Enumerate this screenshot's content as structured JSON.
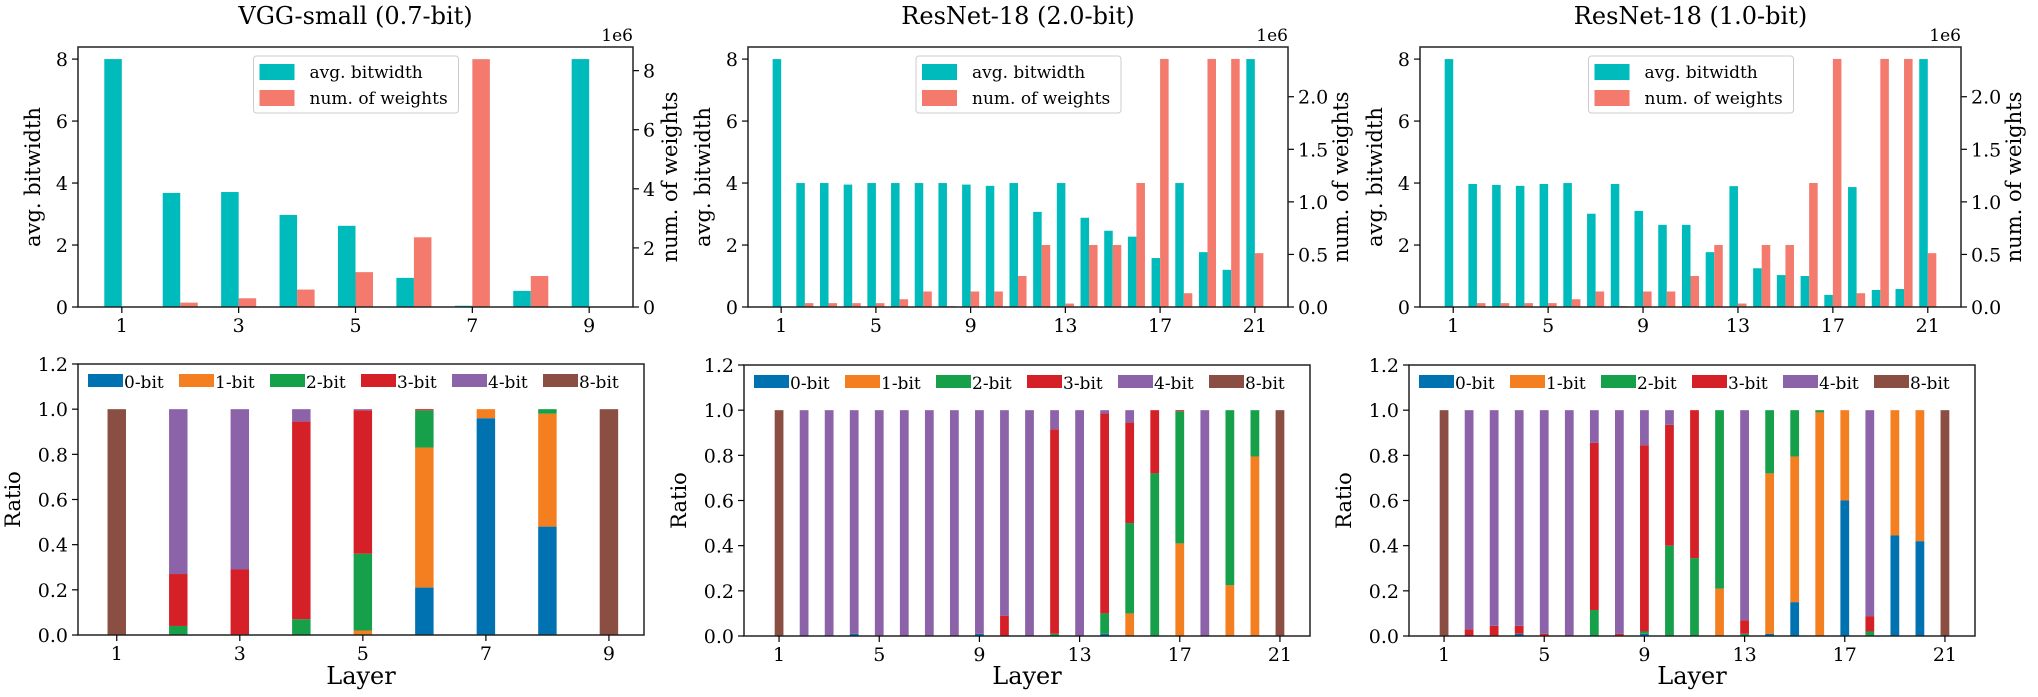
{
  "colors": {
    "avg_bitwidth": "#00BBBB",
    "num_weights": "#F47A6E",
    "0-bit": "#0072B2",
    "1-bit": "#F47F20",
    "2-bit": "#16A04A",
    "3-bit": "#D62027",
    "4-bit": "#8C62A9",
    "8-bit": "#8A4F42"
  },
  "chart_data": [
    {
      "type": "bar",
      "title": "VGG-small (0.7-bit)",
      "xlabel": "",
      "ylabel": "avg. bitwidth",
      "y2label": "num. of weights",
      "y2_offset_text": "1e6",
      "categories": [
        1,
        2,
        3,
        4,
        5,
        6,
        7,
        8,
        9
      ],
      "xticks": [
        "1",
        "3",
        "5",
        "7",
        "9"
      ],
      "xtick_values": [
        1,
        3,
        5,
        7,
        9
      ],
      "xlim": [
        0.25,
        9.75
      ],
      "yticks": [
        "0",
        "2",
        "4",
        "6",
        "8"
      ],
      "ytick_values": [
        0,
        2,
        4,
        6,
        8
      ],
      "ylim": [
        0,
        8.39
      ],
      "y2ticks": [
        "0",
        "2",
        "4",
        "6",
        "8"
      ],
      "y2tick_values": [
        0,
        2000000,
        4000000,
        6000000,
        8000000
      ],
      "y2lim": [
        0,
        8800000
      ],
      "legend": "upper center",
      "series": [
        {
          "name": "avg. bitwidth",
          "axis": "left",
          "values": [
            8,
            3.68,
            3.71,
            2.97,
            2.62,
            0.94,
            0.04,
            0.52,
            8
          ]
        },
        {
          "name": "num. of weights",
          "axis": "right",
          "values": [
            3456,
            147456,
            294912,
            589824,
            1179648,
            2359296,
            8388608,
            1048576,
            10240
          ]
        }
      ]
    },
    {
      "type": "bar",
      "title": "ResNet-18 (2.0-bit)",
      "xlabel": "",
      "ylabel": "avg. bitwidth",
      "y2label": "num. of weights",
      "y2_offset_text": "1e6",
      "categories": [
        1,
        2,
        3,
        4,
        5,
        6,
        7,
        8,
        9,
        10,
        11,
        12,
        13,
        14,
        15,
        16,
        17,
        18,
        19,
        20,
        21
      ],
      "xticks": [
        "1",
        "5",
        "9",
        "13",
        "17",
        "21"
      ],
      "xtick_values": [
        1,
        5,
        9,
        13,
        17,
        21
      ],
      "xlim": [
        -0.4,
        22.4
      ],
      "yticks": [
        "0",
        "2",
        "4",
        "6",
        "8"
      ],
      "ytick_values": [
        0,
        2,
        4,
        6,
        8
      ],
      "ylim": [
        0,
        8.39
      ],
      "y2ticks": [
        "0.0",
        "0.5",
        "1.0",
        "1.5",
        "2.0"
      ],
      "y2tick_values": [
        0,
        500000,
        1000000,
        1500000,
        2000000
      ],
      "y2lim": [
        0,
        2473000
      ],
      "legend": "upper center",
      "series": [
        {
          "name": "avg. bitwidth",
          "axis": "left",
          "values": [
            8,
            4,
            4,
            3.95,
            4,
            4,
            4,
            4,
            3.95,
            3.91,
            4,
            3.07,
            4,
            2.88,
            2.46,
            2.27,
            1.58,
            4,
            1.77,
            1.2,
            8
          ]
        },
        {
          "name": "num. of weights",
          "axis": "right",
          "values": [
            1728,
            36864,
            36864,
            36864,
            36864,
            73728,
            147456,
            8192,
            147456,
            147456,
            294912,
            589824,
            32768,
            589824,
            589824,
            1179648,
            2359296,
            131072,
            2359296,
            2359296,
            512000
          ]
        }
      ]
    },
    {
      "type": "bar",
      "title": "ResNet-18 (1.0-bit)",
      "xlabel": "",
      "ylabel": "avg. bitwidth",
      "y2label": "num. of weights",
      "y2_offset_text": "1e6",
      "categories": [
        1,
        2,
        3,
        4,
        5,
        6,
        7,
        8,
        9,
        10,
        11,
        12,
        13,
        14,
        15,
        16,
        17,
        18,
        19,
        20,
        21
      ],
      "xticks": [
        "1",
        "5",
        "9",
        "13",
        "17",
        "21"
      ],
      "xtick_values": [
        1,
        5,
        9,
        13,
        17,
        21
      ],
      "xlim": [
        -0.4,
        22.4
      ],
      "yticks": [
        "0",
        "2",
        "4",
        "6",
        "8"
      ],
      "ytick_values": [
        0,
        2,
        4,
        6,
        8
      ],
      "ylim": [
        0,
        8.39
      ],
      "y2ticks": [
        "0.0",
        "0.5",
        "1.0",
        "1.5",
        "2.0"
      ],
      "y2tick_values": [
        0,
        500000,
        1000000,
        1500000,
        2000000
      ],
      "y2lim": [
        0,
        2473000
      ],
      "legend": "upper center",
      "series": [
        {
          "name": "avg. bitwidth",
          "axis": "left",
          "values": [
            8,
            3.97,
            3.94,
            3.91,
            3.97,
            4,
            3.01,
            3.97,
            3.1,
            2.65,
            2.65,
            1.77,
            3.9,
            1.25,
            1.03,
            1.0,
            0.39,
            3.87,
            0.55,
            0.58,
            8
          ]
        },
        {
          "name": "num. of weights",
          "axis": "right",
          "values": [
            1728,
            36864,
            36864,
            36864,
            36864,
            73728,
            147456,
            8192,
            147456,
            147456,
            294912,
            589824,
            32768,
            589824,
            589824,
            1179648,
            2359296,
            131072,
            2359296,
            2359296,
            512000
          ]
        }
      ]
    },
    {
      "type": "bar",
      "stacked": true,
      "title": "",
      "xlabel": "Layer",
      "ylabel": "Ratio",
      "categories": [
        1,
        2,
        3,
        4,
        5,
        6,
        7,
        8,
        9
      ],
      "xticks": [
        "1",
        "3",
        "5",
        "7",
        "9"
      ],
      "xtick_values": [
        1,
        3,
        5,
        7,
        9
      ],
      "xlim": [
        0.37,
        9.57
      ],
      "yticks": [
        "0.0",
        "0.2",
        "0.4",
        "0.6",
        "0.8",
        "1.0",
        "1.2"
      ],
      "ytick_values": [
        0,
        0.2,
        0.4,
        0.6,
        0.8,
        1.0,
        1.2
      ],
      "ylim": [
        0,
        1.2
      ],
      "legend": "upper center, one row",
      "series": [
        {
          "name": "0-bit",
          "values": [
            0,
            0,
            0,
            0,
            0,
            0.21,
            0.96,
            0.48,
            0
          ]
        },
        {
          "name": "1-bit",
          "values": [
            0,
            0,
            0,
            0,
            0.02,
            0.62,
            0.04,
            0.5,
            0
          ]
        },
        {
          "name": "2-bit",
          "values": [
            0,
            0.04,
            0,
            0.07,
            0.34,
            0.165,
            0,
            0.02,
            0
          ]
        },
        {
          "name": "3-bit",
          "values": [
            0,
            0.23,
            0.29,
            0.875,
            0.635,
            0.005,
            0,
            0,
            0
          ]
        },
        {
          "name": "4-bit",
          "values": [
            0,
            0.73,
            0.71,
            0.055,
            0.005,
            0,
            0,
            0,
            0
          ]
        },
        {
          "name": "8-bit",
          "values": [
            1,
            0,
            0,
            0,
            0,
            0,
            0,
            0,
            1
          ]
        }
      ]
    },
    {
      "type": "bar",
      "stacked": true,
      "title": "",
      "xlabel": "Layer",
      "ylabel": "Ratio",
      "categories": [
        1,
        2,
        3,
        4,
        5,
        6,
        7,
        8,
        9,
        10,
        11,
        12,
        13,
        14,
        15,
        16,
        17,
        18,
        19,
        20,
        21
      ],
      "xticks": [
        "1",
        "5",
        "9",
        "13",
        "17",
        "21"
      ],
      "xtick_values": [
        1,
        5,
        9,
        13,
        17,
        21
      ],
      "xlim": [
        -0.4,
        22.2
      ],
      "yticks": [
        "0.0",
        "0.2",
        "0.4",
        "0.6",
        "0.8",
        "1.0",
        "1.2"
      ],
      "ytick_values": [
        0,
        0.2,
        0.4,
        0.6,
        0.8,
        1.0,
        1.2
      ],
      "ylim": [
        0,
        1.2
      ],
      "legend": "upper center, one row",
      "series": [
        {
          "name": "0-bit",
          "values": [
            0,
            0,
            0,
            0.01,
            0,
            0,
            0,
            0,
            0.01,
            0,
            0,
            0,
            0,
            0.01,
            0,
            0,
            0,
            0,
            0,
            0,
            0
          ]
        },
        {
          "name": "1-bit",
          "values": [
            0,
            0,
            0,
            0,
            0,
            0,
            0,
            0,
            0,
            0,
            0,
            0,
            0,
            0,
            0.1,
            0,
            0.41,
            0,
            0.225,
            0.795,
            0
          ]
        },
        {
          "name": "2-bit",
          "values": [
            0,
            0,
            0,
            0,
            0,
            0,
            0,
            0,
            0,
            0,
            0,
            0.01,
            0,
            0.09,
            0.4,
            0.72,
            0.585,
            0,
            0.775,
            0.205,
            0
          ]
        },
        {
          "name": "3-bit",
          "values": [
            0,
            0,
            0,
            0,
            0,
            0,
            0,
            0,
            0,
            0.09,
            0,
            0.905,
            0,
            0.885,
            0.445,
            0.28,
            0.005,
            0,
            0,
            0,
            0
          ]
        },
        {
          "name": "4-bit",
          "values": [
            0,
            1,
            1,
            0.99,
            1,
            1,
            1,
            1,
            0.99,
            0.91,
            1,
            0.085,
            1,
            0.015,
            0.055,
            0,
            0,
            1,
            0,
            0,
            0
          ]
        },
        {
          "name": "8-bit",
          "values": [
            1,
            0,
            0,
            0,
            0,
            0,
            0,
            0,
            0,
            0,
            0,
            0,
            0,
            0,
            0,
            0,
            0,
            0,
            0,
            0,
            1
          ]
        }
      ]
    },
    {
      "type": "bar",
      "stacked": true,
      "title": "",
      "xlabel": "Layer",
      "ylabel": "Ratio",
      "categories": [
        1,
        2,
        3,
        4,
        5,
        6,
        7,
        8,
        9,
        10,
        11,
        12,
        13,
        14,
        15,
        16,
        17,
        18,
        19,
        20,
        21
      ],
      "xticks": [
        "1",
        "5",
        "9",
        "13",
        "17",
        "21"
      ],
      "xtick_values": [
        1,
        5,
        9,
        13,
        17,
        21
      ],
      "xlim": [
        -0.4,
        22.2
      ],
      "yticks": [
        "0.0",
        "0.2",
        "0.4",
        "0.6",
        "0.8",
        "1.0",
        "1.2"
      ],
      "ytick_values": [
        0,
        0.2,
        0.4,
        0.6,
        0.8,
        1.0,
        1.2
      ],
      "ylim": [
        0,
        1.2
      ],
      "legend": "upper center, one row",
      "series": [
        {
          "name": "0-bit",
          "values": [
            0,
            0,
            0,
            0.01,
            0,
            0,
            0,
            0,
            0.01,
            0,
            0,
            0,
            0,
            0.01,
            0.15,
            0,
            0.6,
            0,
            0.445,
            0.42,
            0
          ]
        },
        {
          "name": "1-bit",
          "values": [
            0,
            0,
            0,
            0,
            0,
            0,
            0,
            0,
            0,
            0,
            0,
            0.21,
            0,
            0.71,
            0.645,
            0.99,
            0.4,
            0,
            0.555,
            0.58,
            0
          ]
        },
        {
          "name": "2-bit",
          "values": [
            0,
            0,
            0,
            0,
            0,
            0,
            0.115,
            0,
            0.01,
            0.4,
            0.345,
            0.79,
            0.01,
            0.28,
            0.205,
            0.01,
            0,
            0.02,
            0,
            0,
            0
          ]
        },
        {
          "name": "3-bit",
          "values": [
            0,
            0.03,
            0.045,
            0.035,
            0.01,
            0,
            0.74,
            0.01,
            0.825,
            0.535,
            0.655,
            0,
            0.06,
            0,
            0,
            0,
            0,
            0.068,
            0,
            0,
            0
          ]
        },
        {
          "name": "4-bit",
          "values": [
            0,
            0.97,
            0.955,
            0.955,
            0.99,
            1,
            0.145,
            0.99,
            0.155,
            0.065,
            0,
            0,
            0.93,
            0,
            0,
            0,
            0,
            0.912,
            0,
            0,
            0
          ]
        },
        {
          "name": "8-bit",
          "values": [
            1,
            0,
            0,
            0,
            0,
            0,
            0,
            0,
            0,
            0,
            0,
            0,
            0,
            0,
            0,
            0,
            0,
            0,
            0,
            0,
            1
          ]
        }
      ]
    }
  ]
}
